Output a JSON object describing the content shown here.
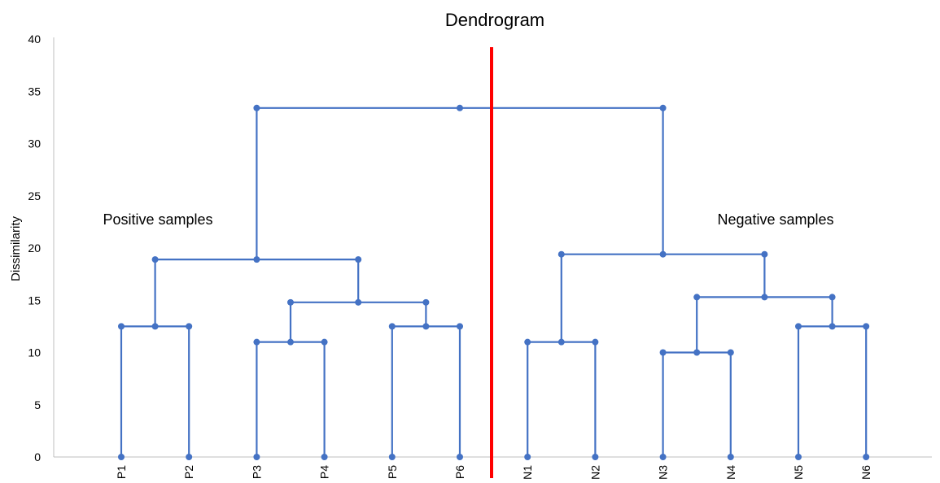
{
  "chart_data": {
    "type": "dendrogram",
    "title": "Dendrogram",
    "xlabel": "",
    "ylabel": "Dissimilarity",
    "ylim": [
      0,
      40
    ],
    "y_ticks": [
      0,
      5,
      10,
      15,
      20,
      25,
      30,
      35,
      40
    ],
    "leaves": [
      "P1",
      "P2",
      "P3",
      "P4",
      "P5",
      "P6",
      "N1",
      "N2",
      "N3",
      "N4",
      "N5",
      "N6"
    ],
    "merges": [
      {
        "left": "P1",
        "right": "P2",
        "height": 12.5
      },
      {
        "left": "P3",
        "right": "P4",
        "height": 11.0
      },
      {
        "left": "P5",
        "right": "P6",
        "height": 12.5
      },
      {
        "left": "P3,P4",
        "right": "P5,P6",
        "height": 14.8
      },
      {
        "left": "P1,P2",
        "right": "P3,P4,P5,P6",
        "height": 18.9
      },
      {
        "left": "N1",
        "right": "N2",
        "height": 11.0
      },
      {
        "left": "N3",
        "right": "N4",
        "height": 10.0
      },
      {
        "left": "N5",
        "right": "N6",
        "height": 12.5
      },
      {
        "left": "N3,N4",
        "right": "N5,N6",
        "height": 15.3
      },
      {
        "left": "N1,N2",
        "right": "N3,N4,N5,N6",
        "height": 19.4
      },
      {
        "left": "P1,P2,P3,P4,P5,P6",
        "right": "N1,N2,N3,N4,N5,N6",
        "height": 33.4
      }
    ],
    "annotations": [
      {
        "text": "Positive samples",
        "side": "left"
      },
      {
        "text": "Negative samples",
        "side": "right"
      }
    ],
    "divider": "vertical red line between P6 and N1",
    "grid": false,
    "legend": "none"
  },
  "colors": {
    "link": "#4472c4",
    "divider": "#ff0000",
    "axis": "#bfbfbf",
    "text": "#000000"
  }
}
